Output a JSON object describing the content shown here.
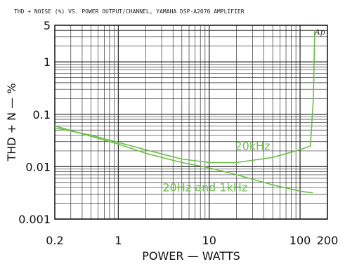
{
  "chart_data": {
    "type": "line",
    "title": "THD + NOISE (%) VS. POWER OUTPUT/CHANNEL,    YAMAHA DSP-A2070 AMPLIFIER",
    "xlabel": "POWER — WATTS",
    "ylabel": "THD + N — %",
    "xscale": "log",
    "yscale": "log",
    "xlim": [
      0.2,
      200
    ],
    "ylim": [
      0.001,
      5
    ],
    "x_ticks": [
      {
        "value": 0.2,
        "label": "0.2"
      },
      {
        "value": 1,
        "label": "1"
      },
      {
        "value": 10,
        "label": "10"
      },
      {
        "value": 100,
        "label": "100"
      },
      {
        "value": 200,
        "label": "200"
      }
    ],
    "y_ticks": [
      {
        "value": 0.001,
        "label": "0.001"
      },
      {
        "value": 0.01,
        "label": "0.01"
      },
      {
        "value": 0.1,
        "label": "0.1"
      },
      {
        "value": 1,
        "label": "1"
      },
      {
        "value": 5,
        "label": "5"
      }
    ],
    "grid": true,
    "line_color": "#6cbf4a",
    "series": [
      {
        "name": "20kHz",
        "x": [
          0.2,
          0.5,
          1,
          2,
          5,
          10,
          20,
          50,
          100,
          130,
          140,
          145
        ],
        "y": [
          0.055,
          0.04,
          0.029,
          0.021,
          0.014,
          0.012,
          0.012,
          0.015,
          0.021,
          0.025,
          0.2,
          4
        ]
      },
      {
        "name": "20Hz and 1kHz",
        "x": [
          0.2,
          0.5,
          1,
          2,
          5,
          10,
          20,
          50,
          100,
          130,
          138
        ],
        "y": [
          0.06,
          0.038,
          0.027,
          0.018,
          0.012,
          0.0095,
          0.007,
          0.0045,
          0.0034,
          0.0032,
          0.0032
        ]
      }
    ],
    "annotations": [
      {
        "text": "20kHz",
        "x": 30,
        "y": 0.021
      },
      {
        "text": "20Hz and 1kHz",
        "x": 9,
        "y": 0.0034
      },
      {
        "text": "Ap",
        "x": 165,
        "y": 3.3
      }
    ]
  }
}
